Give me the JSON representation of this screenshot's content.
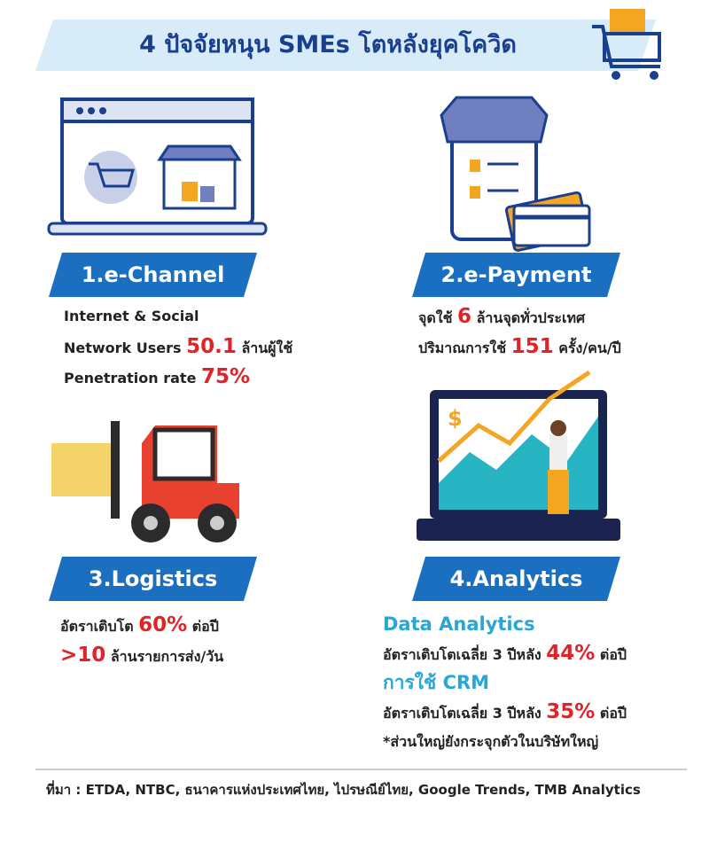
{
  "title": "4 ปัจจัยหนุน SMEs โตหลังยุคโควิด",
  "sections": [
    {
      "heading": "1.e-Channel",
      "lines": [
        [
          {
            "text": "Internet & Social",
            "style": "normal"
          }
        ],
        [
          {
            "text": "Network Users ",
            "style": "normal"
          },
          {
            "text": "50.1",
            "style": "number"
          },
          {
            "text": " ล้านผู้ใช้",
            "style": "normal"
          }
        ],
        [
          {
            "text": "Penetration rate ",
            "style": "normal"
          },
          {
            "text": "75%",
            "style": "number"
          }
        ]
      ]
    },
    {
      "heading": "2.e-Payment",
      "lines": [
        [
          {
            "text": "จุดใช้ ",
            "style": "normal"
          },
          {
            "text": "6",
            "style": "number"
          },
          {
            "text": " ล้านจุดทั่วประเทศ",
            "style": "normal"
          }
        ],
        [
          {
            "text": "ปริมาณการใช้ ",
            "style": "normal"
          },
          {
            "text": "151",
            "style": "number"
          },
          {
            "text": " ครั้ง/คน/ปี",
            "style": "normal"
          }
        ]
      ]
    },
    {
      "heading": "3.Logistics",
      "lines": [
        [
          {
            "text": "อัตราเติบโต ",
            "style": "normal"
          },
          {
            "text": "60%",
            "style": "number"
          },
          {
            "text": " ต่อปี",
            "style": "normal"
          }
        ],
        [
          {
            "text": ">10",
            "style": "number"
          },
          {
            "text": " ล้านรายการส่ง/วัน",
            "style": "normal"
          }
        ]
      ]
    },
    {
      "heading": "4.Analytics",
      "lines": [
        [
          {
            "text": "Data Analytics",
            "style": "subhead"
          }
        ],
        [
          {
            "text": "อัตราเติบโตเฉลี่ย 3 ปีหลัง ",
            "style": "normal"
          },
          {
            "text": "44%",
            "style": "number"
          },
          {
            "text": " ต่อปี",
            "style": "normal"
          }
        ],
        [
          {
            "text": "การใช้ CRM",
            "style": "subhead"
          }
        ],
        [
          {
            "text": "อัตราเติบโตเฉลี่ย 3 ปีหลัง ",
            "style": "normal"
          },
          {
            "text": "35%",
            "style": "number"
          },
          {
            "text": " ต่อปี",
            "style": "normal"
          }
        ],
        [
          {
            "text": "*ส่วนใหญ่ยังกระจุกตัวในบริษัทใหญ่",
            "style": "normal"
          }
        ]
      ]
    }
  ],
  "source": "ที่มา : ETDA, NTBC, ธนาคารแห่งประเทศไทย, ไปรษณีย์ไทย, Google Trends, TMB Analytics"
}
